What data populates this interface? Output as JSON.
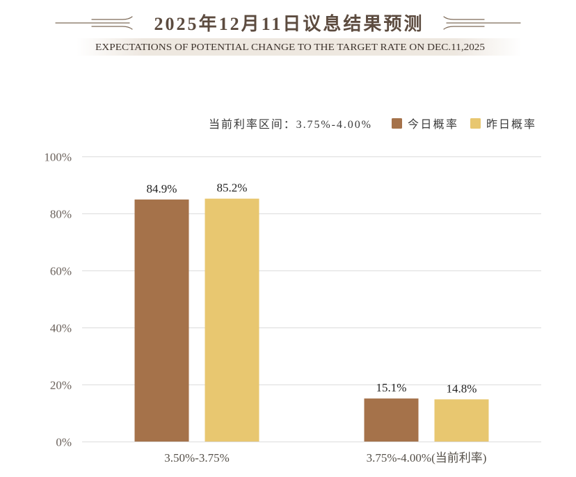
{
  "chart_data": {
    "type": "bar",
    "title": "2025年12月11日议息结果预测",
    "subtitle": "EXPECTATIONS OF POTENTIAL CHANGE TO THE TARGET RATE ON DEC.11,2025",
    "legend_note": "当前利率区间：3.75%-4.00%",
    "legend_position": "top-right",
    "categories": [
      "3.50%-3.75%",
      "3.75%-4.00%(当前利率)"
    ],
    "series": [
      {
        "name": "今日概率",
        "color": "#a5724a",
        "values": [
          84.9,
          15.1
        ],
        "labels": [
          "84.9%",
          "15.1%"
        ]
      },
      {
        "name": "昨日概率",
        "color": "#e8c770",
        "values": [
          85.2,
          14.8
        ],
        "labels": [
          "85.2%",
          "14.8%"
        ]
      }
    ],
    "ylim": [
      0,
      100
    ],
    "yticks": [
      0,
      20,
      40,
      60,
      80,
      100
    ],
    "ytick_labels": [
      "0%",
      "20%",
      "40%",
      "60%",
      "80%",
      "100%"
    ],
    "grid": true
  }
}
